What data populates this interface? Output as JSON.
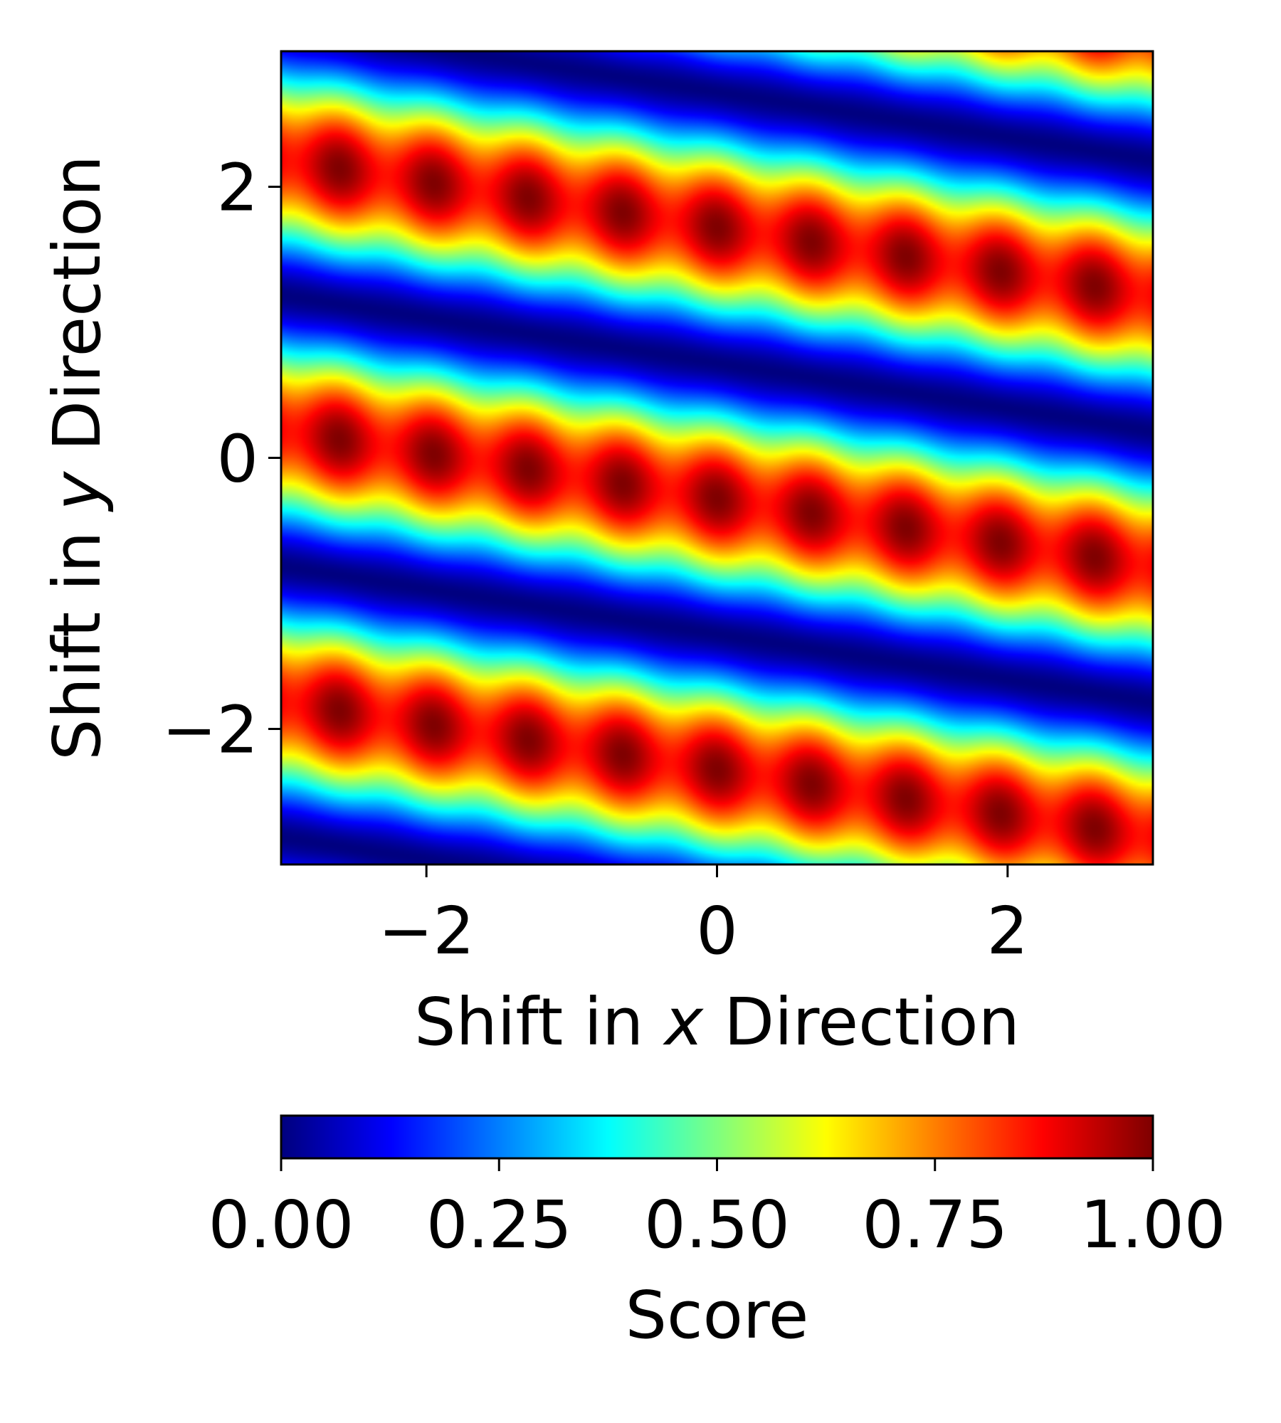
{
  "chart_data": {
    "type": "heatmap",
    "title": "",
    "xlabel": {
      "prefix": "Shift in ",
      "var": "x",
      "suffix": " Direction"
    },
    "ylabel": {
      "prefix": "Shift in ",
      "var": "y",
      "suffix": " Direction"
    },
    "xlim": [
      -3,
      3
    ],
    "ylim": [
      -3,
      3
    ],
    "x_ticks": [
      -2,
      0,
      2
    ],
    "x_tick_labels": [
      "−2",
      "0",
      "2"
    ],
    "y_ticks": [
      -2,
      0,
      2
    ],
    "y_tick_labels": [
      "−2",
      "0",
      "2"
    ],
    "grid": false,
    "colormap": "jet",
    "value_range": [
      0,
      1
    ],
    "pattern": {
      "description": "diagonal periodic bands",
      "band_slope_dy_dx": -0.167,
      "band_period_y": 2.0,
      "max_at_x0_y": [
        -0.3,
        1.7
      ],
      "modulation_period_along_band_x": 0.65
    },
    "colorbar": {
      "label": "Score",
      "orientation": "horizontal",
      "placement": "bottom",
      "ticks": [
        0.0,
        0.25,
        0.5,
        0.75,
        1.0
      ],
      "tick_labels": [
        "0.00",
        "0.25",
        "0.50",
        "0.75",
        "1.00"
      ]
    }
  }
}
